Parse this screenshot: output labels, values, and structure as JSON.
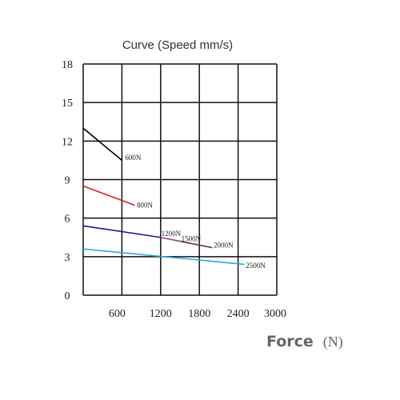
{
  "chart_data": {
    "type": "line",
    "title": "Curve (Speed mm/s)",
    "xlabel": "Force",
    "xlabel_unit": "(N)",
    "ylabel": "",
    "xlim": [
      0,
      3000
    ],
    "ylim": [
      0,
      18
    ],
    "x_ticks": [
      600,
      1200,
      1800,
      2400,
      3000
    ],
    "x_tick_labels": [
      "600",
      "1200",
      "1800",
      "2400",
      "3000"
    ],
    "y_ticks": [
      0,
      3,
      6,
      9,
      12,
      15,
      18
    ],
    "y_tick_labels": [
      "0",
      "3",
      "6",
      "9",
      "12",
      "15",
      "18"
    ],
    "grid": true,
    "series": [
      {
        "name": "600N",
        "color": "#000000",
        "points": [
          [
            0,
            13
          ],
          [
            600,
            10.5
          ]
        ],
        "label_at": [
          650,
          10.7
        ]
      },
      {
        "name": "800N",
        "color": "#e02020",
        "points": [
          [
            0,
            8.5
          ],
          [
            800,
            7
          ]
        ],
        "label_at": [
          830,
          7
        ]
      },
      {
        "name": "1200N",
        "color": "#1a1a8c",
        "points": [
          [
            0,
            5.4
          ],
          [
            1200,
            4.5
          ]
        ],
        "label_at": [
          1210,
          4.8
        ]
      },
      {
        "name": "1500N",
        "color": "#8a4a8a",
        "points": [
          [
            1200,
            4.5
          ],
          [
            1500,
            4.2
          ]
        ],
        "label_at": [
          1520,
          4.4
        ]
      },
      {
        "name": "2000N",
        "color": "#5a3a3a",
        "points": [
          [
            1500,
            4.2
          ],
          [
            2000,
            3.7
          ]
        ],
        "label_at": [
          2020,
          3.9
        ]
      },
      {
        "name": "2500N",
        "color": "#2aa8e0",
        "points": [
          [
            0,
            3.6
          ],
          [
            2500,
            2.4
          ]
        ],
        "label_at": [
          2520,
          2.3
        ]
      }
    ]
  }
}
